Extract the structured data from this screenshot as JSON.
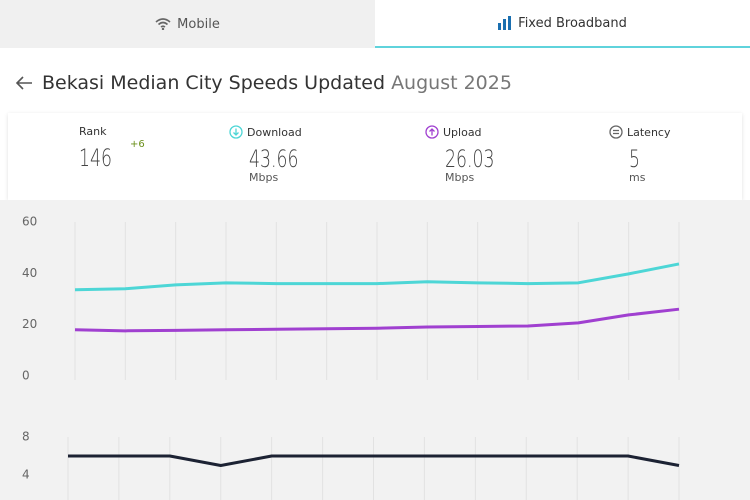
{
  "tabs": [
    "Mobile",
    "Fixed Broadband"
  ],
  "header": {
    "title": "Bekasi Median City Speeds Updated",
    "date": "August 2025"
  },
  "stats": [
    {
      "label": "Rank",
      "value": 146,
      "change": "+6"
    },
    {
      "label": "Download",
      "value": 43.66,
      "unit": "Mbps"
    },
    {
      "label": "Upload",
      "value": 26.03,
      "unit": "Mbps"
    },
    {
      "label": "Latency",
      "value": 5,
      "unit": "ms"
    }
  ],
  "chart_data": [
    {
      "type": "line",
      "ylim": [
        0,
        60
      ],
      "yticks": [
        0,
        20,
        40,
        60
      ],
      "grid": true,
      "series": [
        {
          "color": "#4dd6d6",
          "values": [
            33.6,
            34,
            35.5,
            36.3,
            36,
            36,
            36,
            36.7,
            36.3,
            36,
            36.3,
            39.8,
            43.66
          ]
        },
        {
          "color": "#a040d0",
          "values": [
            18,
            17.6,
            17.8,
            18,
            18.2,
            18.4,
            18.6,
            19.1,
            19.3,
            19.5,
            20.7,
            23.8,
            26.03
          ]
        }
      ]
    },
    {
      "type": "line",
      "ylim": [
        3,
        8
      ],
      "yticks": [
        4,
        8
      ],
      "grid": true,
      "series": [
        {
          "color": "#1c2233",
          "values": [
            6,
            6,
            6,
            5,
            6,
            6,
            6,
            6,
            6,
            6,
            6,
            6,
            5
          ]
        }
      ]
    }
  ]
}
